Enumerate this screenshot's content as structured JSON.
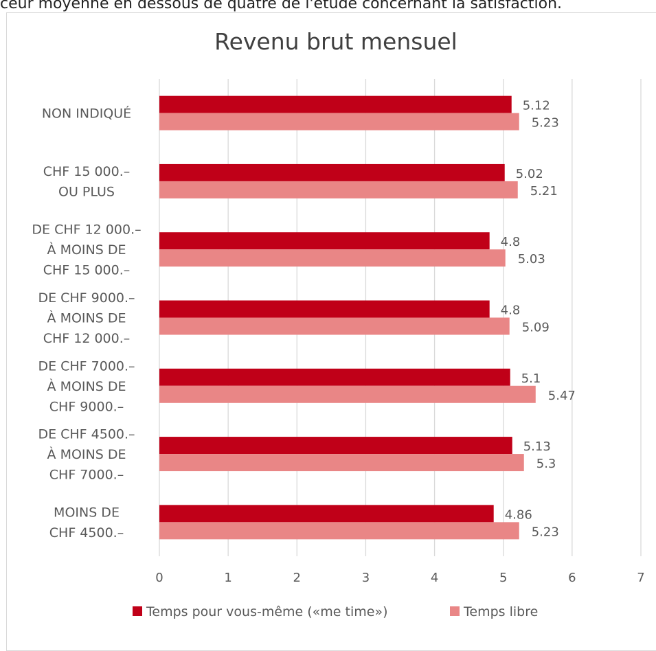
{
  "top_caption": "ceur moyenne en dessous de quatre de l'étude concernant la satisfaction.",
  "chart_data": {
    "type": "bar",
    "orientation": "horizontal",
    "title": "Revenu brut mensuel",
    "categories": [
      [
        "NON INDIQUÉ"
      ],
      [
        "CHF 15 000.–",
        "OU PLUS"
      ],
      [
        "DE CHF 12 000.–",
        "À MOINS DE",
        "CHF 15 000.–"
      ],
      [
        "DE CHF 9000.–",
        "À MOINS DE",
        "CHF 12 000.–"
      ],
      [
        "DE CHF 7000.–",
        "À MOINS DE",
        "CHF 9000.–"
      ],
      [
        "DE CHF 4500.–",
        "À MOINS DE",
        "CHF 7000.–"
      ],
      [
        "MOINS DE",
        "CHF 4500.–"
      ]
    ],
    "series": [
      {
        "name": "Temps pour vous-même («me time»)",
        "color": "#c00018",
        "values": [
          5.12,
          5.02,
          4.8,
          4.8,
          5.1,
          5.13,
          4.86
        ],
        "labels": [
          "5.12",
          "5.02",
          "4.8",
          "4.8",
          "5.1",
          "5.13",
          "4.86"
        ]
      },
      {
        "name": "Temps libre",
        "color": "#e98686",
        "values": [
          5.23,
          5.21,
          5.03,
          5.09,
          5.47,
          5.3,
          5.23
        ],
        "labels": [
          "5.23",
          "5.21",
          "5.03",
          "5.09",
          "5.47",
          "5.3",
          "5.23"
        ]
      }
    ],
    "xlim": [
      0,
      7
    ],
    "xticks": [
      "0",
      "1",
      "2",
      "3",
      "4",
      "5",
      "6",
      "7"
    ],
    "grid": true,
    "legend": "bottom"
  }
}
